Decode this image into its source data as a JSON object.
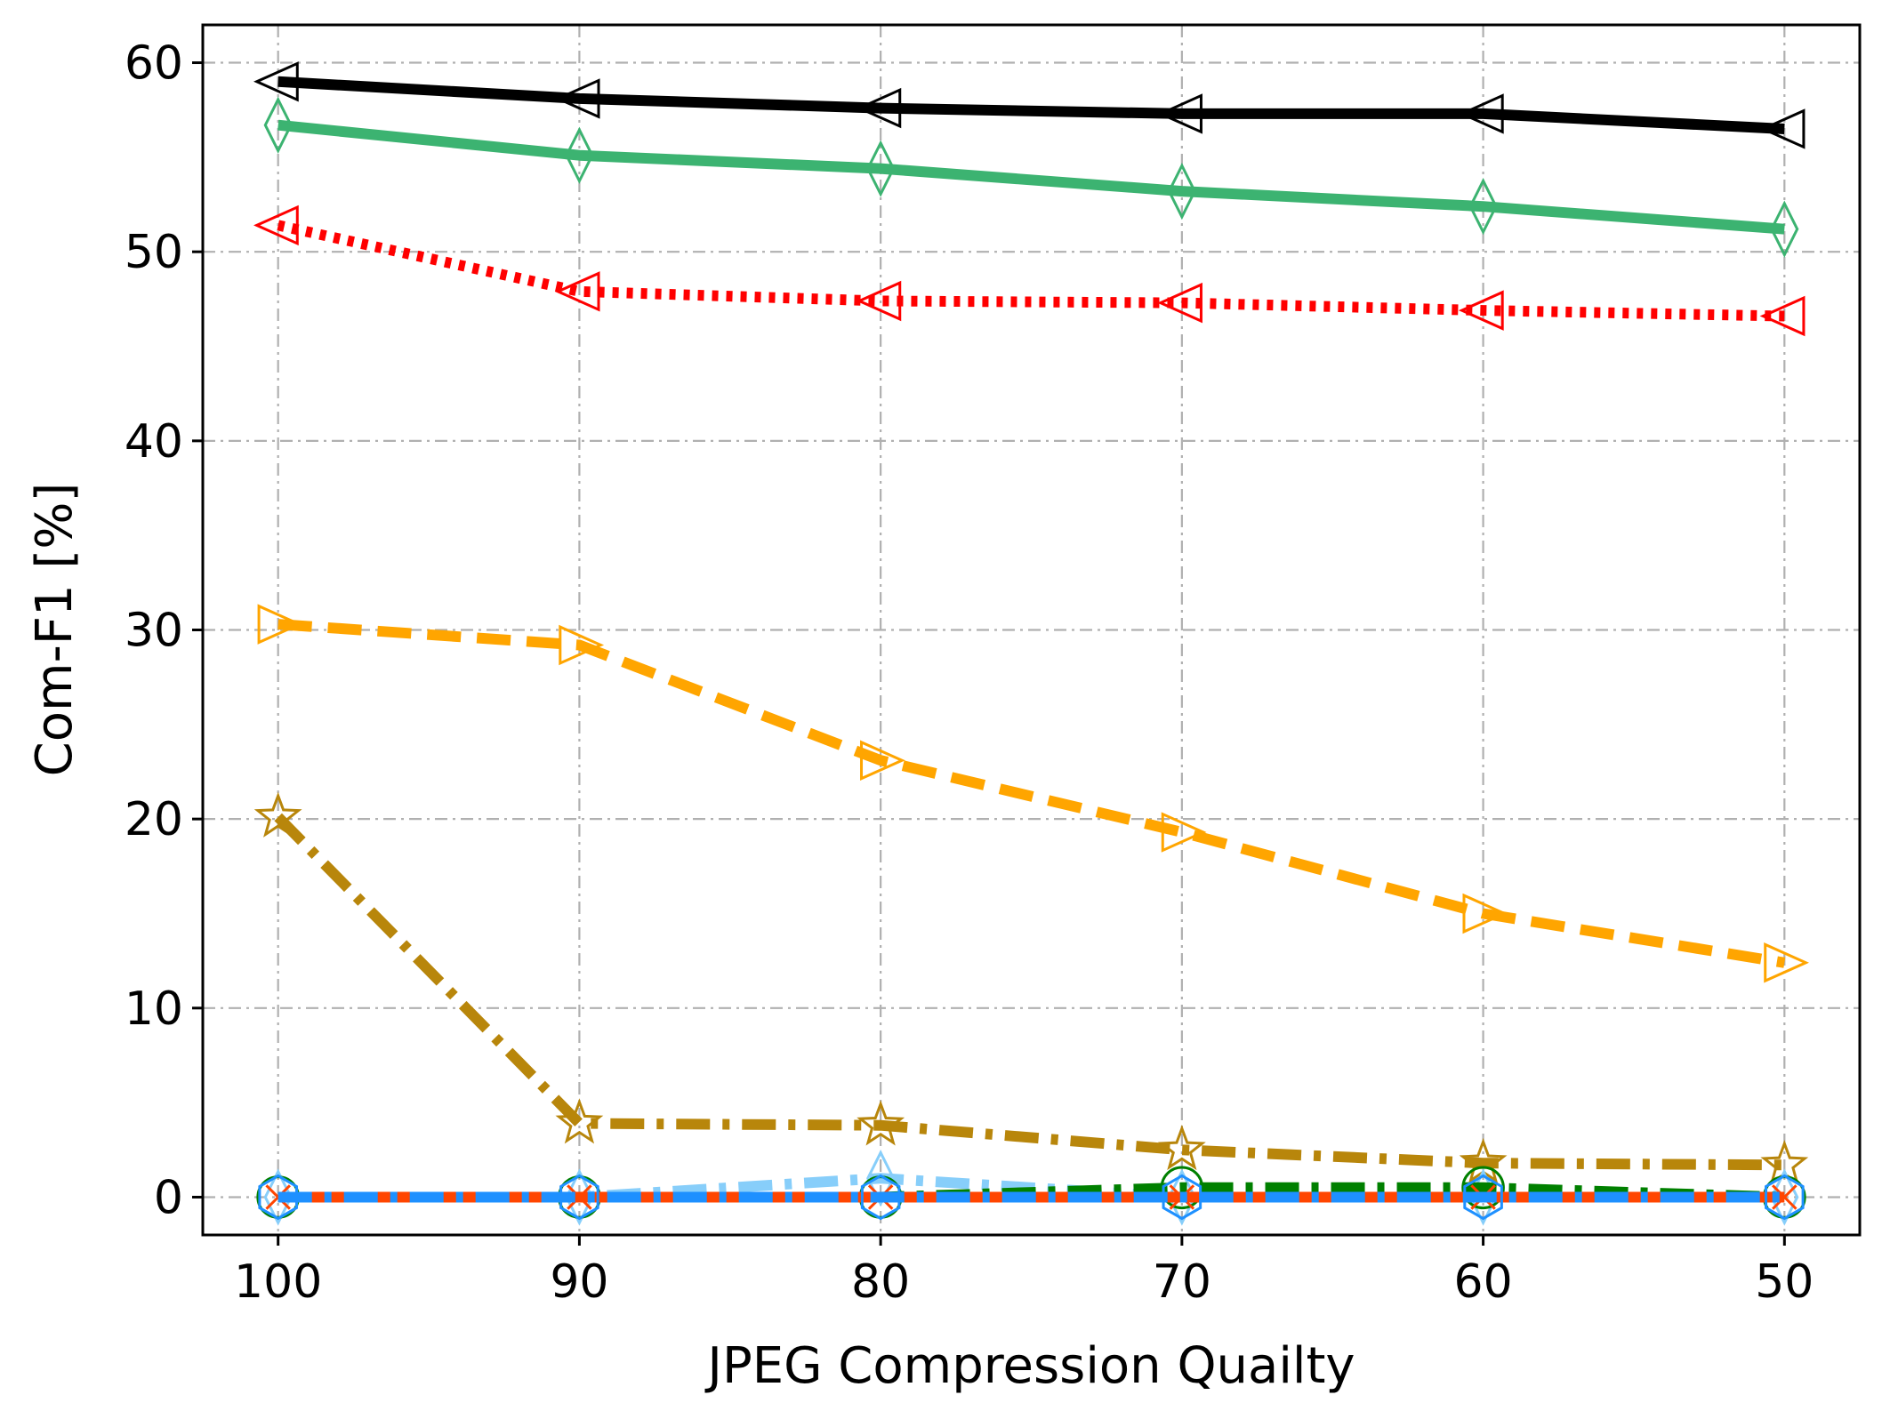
{
  "chart_data": {
    "type": "line",
    "xlabel": "JPEG Compression Quailty",
    "ylabel": "Com-F1 [%]",
    "x": [
      100,
      90,
      80,
      70,
      60,
      50
    ],
    "x_tick_labels": [
      "100",
      "90",
      "80",
      "70",
      "60",
      "50"
    ],
    "y_ticks": [
      0,
      10,
      20,
      30,
      40,
      50,
      60
    ],
    "y_tick_labels": [
      "0",
      "10",
      "20",
      "30",
      "40",
      "50",
      "60"
    ],
    "xlim": [
      102.5,
      47.5
    ],
    "ylim": [
      -2,
      62
    ],
    "x_reversed": true,
    "grid": true,
    "legend": "none",
    "series": [
      {
        "color": "#000000",
        "line_style": "solid",
        "marker": "triangle-left",
        "values": [
          59.0,
          58.1,
          57.6,
          57.3,
          57.3,
          56.5
        ]
      },
      {
        "color": "#3cb371",
        "line_style": "solid",
        "marker": "thin-diamond",
        "values": [
          56.7,
          55.1,
          54.4,
          53.2,
          52.4,
          51.2
        ]
      },
      {
        "color": "#ff0000",
        "line_style": "dotted",
        "marker": "triangle-left",
        "values": [
          51.4,
          47.9,
          47.4,
          47.3,
          46.9,
          46.6
        ]
      },
      {
        "color": "#ffa500",
        "line_style": "dashed",
        "marker": "triangle-right",
        "values": [
          30.3,
          29.2,
          23.1,
          19.3,
          15.0,
          12.4
        ]
      },
      {
        "color": "#b8860b",
        "line_style": "dashdot",
        "marker": "star",
        "values": [
          20.1,
          3.9,
          3.8,
          2.5,
          1.8,
          1.7
        ]
      },
      {
        "color": "#87cefa",
        "line_style": "dashdot",
        "marker": "thin-diamond",
        "values": [
          0.0,
          0.0,
          1.0,
          0.0,
          0.0,
          0.0
        ]
      },
      {
        "color": "#008000",
        "line_style": "dashdot",
        "marker": "circle",
        "values": [
          0.0,
          0.0,
          0.0,
          0.5,
          0.5,
          0.0
        ]
      },
      {
        "color": "#ff4500",
        "line_style": "solid",
        "marker": "x",
        "values": [
          0.0,
          0.0,
          0.0,
          0.0,
          0.0,
          0.0
        ]
      },
      {
        "color": "#1e90ff",
        "line_style": "dashdot",
        "marker": "hexagon",
        "values": [
          0.0,
          0.0,
          0.0,
          0.0,
          0.0,
          0.0
        ]
      }
    ]
  }
}
